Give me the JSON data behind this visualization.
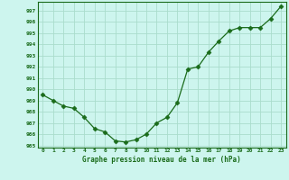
{
  "x": [
    0,
    1,
    2,
    3,
    4,
    5,
    6,
    7,
    8,
    9,
    10,
    11,
    12,
    13,
    14,
    15,
    16,
    17,
    18,
    19,
    20,
    21,
    22,
    23
  ],
  "y": [
    989.5,
    989.0,
    988.5,
    988.3,
    987.5,
    986.5,
    986.2,
    985.4,
    985.3,
    985.5,
    986.0,
    987.0,
    987.5,
    988.8,
    991.8,
    992.0,
    993.3,
    994.3,
    995.2,
    995.5,
    995.5,
    995.5,
    996.3,
    997.4
  ],
  "ylim": [
    984.8,
    997.8
  ],
  "yticks": [
    985,
    986,
    987,
    988,
    989,
    990,
    991,
    992,
    993,
    994,
    995,
    996,
    997
  ],
  "xlim": [
    -0.5,
    23.5
  ],
  "xticks": [
    0,
    1,
    2,
    3,
    4,
    5,
    6,
    7,
    8,
    9,
    10,
    11,
    12,
    13,
    14,
    15,
    16,
    17,
    18,
    19,
    20,
    21,
    22,
    23
  ],
  "xlabel": "Graphe pression niveau de la mer (hPa)",
  "line_color": "#1a6b1a",
  "marker": "D",
  "marker_size": 2.5,
  "background_color": "#cdf5ee",
  "grid_color": "#aaddcc",
  "text_color": "#1a6b1a",
  "tick_color": "#1a6b1a",
  "spine_color": "#1a6b1a"
}
